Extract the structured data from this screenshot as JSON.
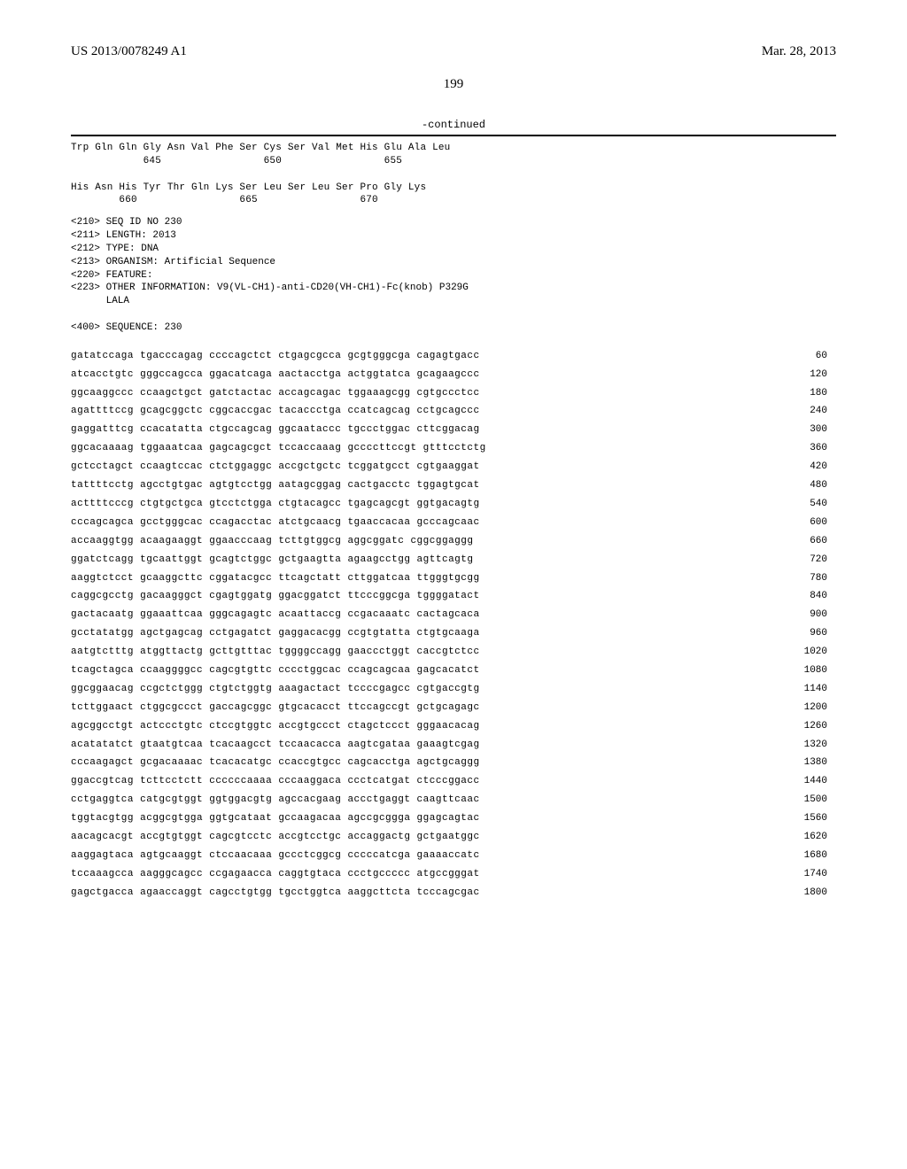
{
  "header": {
    "pub_number": "US 2013/0078249 A1",
    "pub_date": "Mar. 28, 2013",
    "page_number": "199"
  },
  "continued_label": "-continued",
  "protein_block": "Trp Gln Gln Gly Asn Val Phe Ser Cys Ser Val Met His Glu Ala Leu\n            645                 650                 655\n\nHis Asn His Tyr Thr Gln Lys Ser Leu Ser Leu Ser Pro Gly Lys\n        660                 665                 670",
  "meta": "<210> SEQ ID NO 230\n<211> LENGTH: 2013\n<212> TYPE: DNA\n<213> ORGANISM: Artificial Sequence\n<220> FEATURE:\n<223> OTHER INFORMATION: V9(VL-CH1)-anti-CD20(VH-CH1)-Fc(knob) P329G\n      LALA\n\n<400> SEQUENCE: 230",
  "sequence": [
    {
      "seq": "gatatccaga tgacccagag ccccagctct ctgagcgcca gcgtgggcga cagagtgacc",
      "n": 60
    },
    {
      "seq": "atcacctgtc gggccagcca ggacatcaga aactacctga actggtatca gcagaagccc",
      "n": 120
    },
    {
      "seq": "ggcaaggccc ccaagctgct gatctactac accagcagac tggaaagcgg cgtgccctcc",
      "n": 180
    },
    {
      "seq": "agattttccg gcagcggctc cggcaccgac tacaccctga ccatcagcag cctgcagccc",
      "n": 240
    },
    {
      "seq": "gaggatttcg ccacatatta ctgccagcag ggcaataccc tgccctggac cttcggacag",
      "n": 300
    },
    {
      "seq": "ggcacaaaag tggaaatcaa gagcagcgct tccaccaaag gccccttccgt gtttcctctg",
      "n": 360
    },
    {
      "seq": "gctcctagct ccaagtccac ctctggaggc accgctgctc tcggatgcct cgtgaaggat",
      "n": 420
    },
    {
      "seq": "tattttcctg agcctgtgac agtgtcctgg aatagcggag cactgacctc tggagtgcat",
      "n": 480
    },
    {
      "seq": "acttttcccg ctgtgctgca gtcctctgga ctgtacagcc tgagcagcgt ggtgacagtg",
      "n": 540
    },
    {
      "seq": "cccagcagca gcctgggcac ccagacctac atctgcaacg tgaaccacaa gcccagcaac",
      "n": 600
    },
    {
      "seq": "accaaggtgg acaagaaggt ggaacccaag tcttgtggcg aggcggatc cggcggaggg",
      "n": 660
    },
    {
      "seq": "ggatctcagg tgcaattggt gcagtctggc gctgaagtta agaagcctgg agttcagtg",
      "n": 720
    },
    {
      "seq": "aaggtctcct gcaaggcttc cggatacgcc ttcagctatt cttggatcaa ttgggtgcgg",
      "n": 780
    },
    {
      "seq": "caggcgcctg gacaagggct cgagtggatg ggacggatct ttcccggcga tggggatact",
      "n": 840
    },
    {
      "seq": "gactacaatg ggaaattcaa gggcagagtc acaattaccg ccgacaaatc cactagcaca",
      "n": 900
    },
    {
      "seq": "gcctatatgg agctgagcag cctgagatct gaggacacgg ccgtgtatta ctgtgcaaga",
      "n": 960
    },
    {
      "seq": "aatgtctttg atggttactg gcttgtttac tggggccagg gaaccctggt caccgtctcc",
      "n": 1020
    },
    {
      "seq": "tcagctagca ccaaggggcc cagcgtgttc cccctggcac ccagcagcaa gagcacatct",
      "n": 1080
    },
    {
      "seq": "ggcggaacag ccgctctggg ctgtctggtg aaagactact tccccgagcc cgtgaccgtg",
      "n": 1140
    },
    {
      "seq": "tcttggaact ctggcgccct gaccagcggc gtgcacacct ttccagccgt gctgcagagc",
      "n": 1200
    },
    {
      "seq": "agcggcctgt actccctgtc ctccgtggtc accgtgccct ctagctccct gggaacacag",
      "n": 1260
    },
    {
      "seq": "acatatatct gtaatgtcaa tcacaagcct tccaacacca aagtcgataa gaaagtcgag",
      "n": 1320
    },
    {
      "seq": "cccaagagct gcgacaaaac tcacacatgc ccaccgtgcc cagcacctga agctgcaggg",
      "n": 1380
    },
    {
      "seq": "ggaccgtcag tcttcctctt ccccccaaaa cccaaggaca ccctcatgat ctcccggacc",
      "n": 1440
    },
    {
      "seq": "cctgaggtca catgcgtggt ggtggacgtg agccacgaag accctgaggt caagttcaac",
      "n": 1500
    },
    {
      "seq": "tggtacgtgg acggcgtgga ggtgcataat gccaagacaa agccgcggga ggagcagtac",
      "n": 1560
    },
    {
      "seq": "aacagcacgt accgtgtggt cagcgtcctc accgtcctgc accaggactg gctgaatggc",
      "n": 1620
    },
    {
      "seq": "aaggagtaca agtgcaaggt ctccaacaaa gccctcggcg cccccatcga gaaaaccatc",
      "n": 1680
    },
    {
      "seq": "tccaaagcca aagggcagcc ccgagaacca caggtgtaca ccctgccccc atgccgggat",
      "n": 1740
    },
    {
      "seq": "gagctgacca agaaccaggt cagcctgtgg tgcctggtca aaggcttcta tcccagcgac",
      "n": 1800
    }
  ]
}
